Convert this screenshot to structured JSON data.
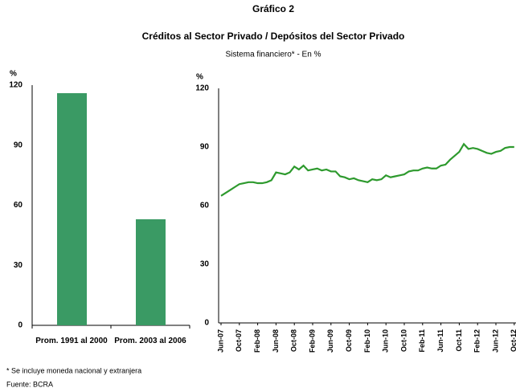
{
  "header": {
    "title": "Gráfico 2",
    "subtitle": "Créditos al Sector Privado / Depósitos del Sector Privado",
    "note": "Sistema financiero* - En %"
  },
  "footnotes": [
    "* Se incluye moneda nacional y extranjera",
    "Fuente: BCRA"
  ],
  "chart_data": [
    {
      "type": "bar",
      "y_label": "%",
      "categories": [
        "Prom. 1991 al 2000",
        "Prom. 2003 al 2006"
      ],
      "values": [
        116,
        53
      ],
      "color": "#3a9a64",
      "ylim": [
        0,
        120
      ],
      "yticks": [
        0,
        30,
        60,
        90,
        120
      ]
    },
    {
      "type": "line",
      "y_label": "%",
      "categories": [
        "Jun-07",
        null,
        null,
        null,
        "Oct-07",
        null,
        null,
        null,
        "Feb-08",
        null,
        null,
        null,
        "Jun-08",
        null,
        null,
        null,
        "Oct-08",
        null,
        null,
        null,
        "Feb-09",
        null,
        null,
        null,
        "Jun-09",
        null,
        null,
        null,
        "Oct-09",
        null,
        null,
        null,
        "Feb-10",
        null,
        null,
        null,
        "Jun-10",
        null,
        null,
        null,
        "Oct-10",
        null,
        null,
        null,
        "Feb-11",
        null,
        null,
        null,
        "Jun-11",
        null,
        null,
        null,
        "Oct-11",
        null,
        null,
        null,
        "Feb-12",
        null,
        null,
        null,
        "Jun-12",
        null,
        null,
        null,
        "Oct-12"
      ],
      "values": [
        65,
        66.5,
        68,
        69.5,
        71,
        71.5,
        72,
        72,
        71.5,
        71.5,
        72,
        73,
        77,
        76.5,
        76,
        77,
        80,
        78.5,
        80.5,
        78,
        78.5,
        79,
        78,
        78.5,
        77.5,
        77.5,
        75,
        74.5,
        73.5,
        74,
        73,
        72.5,
        72,
        73.5,
        73,
        73.5,
        75.5,
        74.5,
        75,
        75.5,
        76,
        77.5,
        78,
        78,
        79,
        79.5,
        79,
        79,
        80.5,
        81,
        83.5,
        85.5,
        87.5,
        91.5,
        89,
        89.5,
        89,
        88,
        87,
        86.5,
        87.5,
        88,
        89.5,
        90,
        90
      ],
      "color": "#2e9a2e",
      "ylim": [
        0,
        120
      ],
      "yticks": [
        0,
        30,
        60,
        90,
        120
      ]
    }
  ]
}
